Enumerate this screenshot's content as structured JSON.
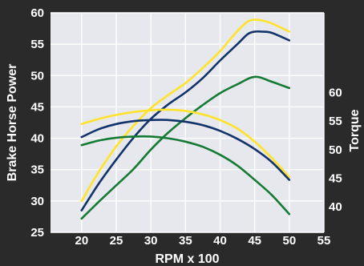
{
  "chart_data": {
    "type": "line",
    "title": "",
    "xlabel": "RPM x 100",
    "ylabel_left": "Brake Horse Power",
    "ylabel_right": "Torque",
    "x_ticks": [
      20,
      25,
      30,
      35,
      40,
      45,
      50,
      55
    ],
    "y_left_ticks": [
      25,
      30,
      35,
      40,
      45,
      50,
      55,
      60
    ],
    "y_right_ticks": [
      40,
      45,
      50,
      55,
      60
    ],
    "xlim": [
      15.5,
      55
    ],
    "ylim_left": [
      25,
      60
    ],
    "ylim_right": [
      35.5,
      74
    ],
    "grid": true,
    "legend": "none",
    "colors": {
      "background": "#2a2a2a",
      "plot_area": "#e6e8ee",
      "grid": "#ffffff",
      "yellow": "#ffe32a",
      "navy": "#12336a",
      "green": "#157a33"
    },
    "series": [
      {
        "color": "yellow",
        "axis": "left",
        "kind": "power",
        "x": [
          20,
          22.5,
          25,
          27.5,
          30,
          32.5,
          35,
          37.5,
          40,
          42.5,
          44,
          45,
          46,
          47.5,
          50
        ],
        "y": [
          30,
          34.7,
          38.7,
          42,
          44.8,
          46.9,
          48.8,
          51.2,
          53.9,
          57.1,
          58.6,
          58.9,
          58.8,
          58.3,
          57
        ]
      },
      {
        "color": "navy",
        "axis": "left",
        "kind": "power",
        "x": [
          20,
          22.5,
          25,
          27.5,
          30,
          32.5,
          35,
          37.5,
          40,
          42.5,
          44,
          45,
          46,
          47.5,
          50
        ],
        "y": [
          28.5,
          32.8,
          36.6,
          40.1,
          43.1,
          45.4,
          47.3,
          49.6,
          52.4,
          55,
          56.6,
          57,
          57,
          56.8,
          55.6
        ]
      },
      {
        "color": "green",
        "axis": "left",
        "kind": "power",
        "x": [
          20,
          22.5,
          25,
          27.5,
          30,
          32.5,
          35,
          37.5,
          40,
          42.5,
          45,
          47.5,
          50
        ],
        "y": [
          27.2,
          29.9,
          32.5,
          35.1,
          38.2,
          40.9,
          43.2,
          45.3,
          47.2,
          48.6,
          49.8,
          49,
          48
        ]
      },
      {
        "color": "yellow",
        "axis": "right",
        "kind": "torque",
        "x": [
          20,
          22.5,
          25,
          27.5,
          30,
          32.5,
          35,
          37.5,
          40,
          42.5,
          45,
          47.5,
          50
        ],
        "y": [
          54.5,
          55.4,
          56.1,
          56.6,
          56.9,
          57,
          56.8,
          56.2,
          55.2,
          53.7,
          51.4,
          48.5,
          45.2
        ]
      },
      {
        "color": "navy",
        "axis": "right",
        "kind": "torque",
        "x": [
          20,
          22.5,
          25,
          27.5,
          30,
          32.5,
          35,
          37.5,
          40,
          42.5,
          45,
          47.5,
          50
        ],
        "y": [
          52.2,
          53.6,
          54.5,
          55,
          55.2,
          55.2,
          54.9,
          54.3,
          53.3,
          51.9,
          50.1,
          47.8,
          44.7
        ]
      },
      {
        "color": "green",
        "axis": "right",
        "kind": "torque",
        "x": [
          20,
          22.5,
          25,
          27.5,
          30,
          32.5,
          35,
          37.5,
          40,
          42.5,
          45,
          47.5,
          50
        ],
        "y": [
          50.8,
          51.6,
          52.1,
          52.3,
          52.3,
          52,
          51.4,
          50.5,
          49.1,
          47.2,
          44.7,
          42,
          38.7
        ]
      }
    ]
  }
}
